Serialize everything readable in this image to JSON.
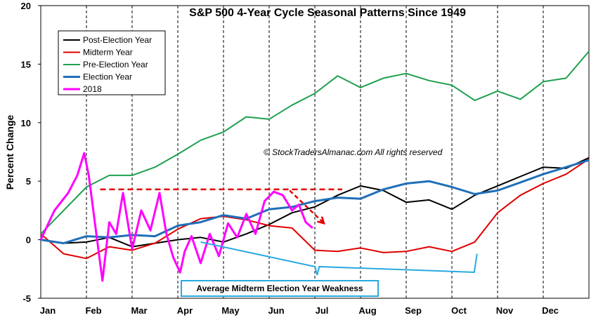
{
  "chart_data": {
    "type": "line",
    "title": "S&P 500 4-Year Cycle Seasonal Patterns Since 1949",
    "ylabel": "Percent Change",
    "xlabel": "",
    "ylim": [
      -5,
      20
    ],
    "yticks": [
      -5,
      0,
      5,
      10,
      15,
      20
    ],
    "xlim": [
      0,
      12
    ],
    "categories": [
      "Jan",
      "Feb",
      "Mar",
      "Apr",
      "May",
      "Jun",
      "Jul",
      "Aug",
      "Sep",
      "Oct",
      "Nov",
      "Dec"
    ],
    "grid": "vertical dashed at month starts",
    "legend_position": "top-left",
    "copyright": "© StockTradersAlmanac.com All rights reserved",
    "annotation": "Average Midterm Election Year Weakness",
    "series": [
      {
        "name": "Post-Election Year",
        "color": "#000000",
        "x": [
          0,
          0.5,
          1,
          1.5,
          2,
          2.5,
          3,
          3.5,
          4,
          4.5,
          5,
          5.5,
          6,
          6.5,
          7,
          7.5,
          8,
          8.5,
          9,
          9.5,
          10,
          10.5,
          11,
          11.5,
          12
        ],
        "y": [
          0,
          -0.3,
          -0.2,
          0.2,
          -0.6,
          -0.3,
          0,
          0.2,
          -0.2,
          0.5,
          1.3,
          2.3,
          2.8,
          3.8,
          4.6,
          4.2,
          3.2,
          3.4,
          2.6,
          3.8,
          4.6,
          5.4,
          6.2,
          6.1,
          7.0
        ]
      },
      {
        "name": "Midterm Year",
        "color": "#e00000",
        "x": [
          0,
          0.5,
          1,
          1.5,
          2,
          2.5,
          3,
          3.5,
          4,
          4.5,
          5,
          5.5,
          6,
          6.5,
          7,
          7.5,
          8,
          8.5,
          9,
          9.5,
          10,
          10.5,
          11,
          11.5,
          12
        ],
        "y": [
          0.5,
          -1.2,
          -1.6,
          -0.6,
          -0.9,
          -0.3,
          0.9,
          1.8,
          2.0,
          1.7,
          1.2,
          1.0,
          -0.9,
          -1.0,
          -0.7,
          -1.1,
          -1.0,
          -0.6,
          -1.0,
          -0.2,
          2.3,
          3.8,
          4.8,
          5.6,
          6.9
        ]
      },
      {
        "name": "Pre-Election Year",
        "color": "#1ea04e",
        "x": [
          0,
          0.5,
          1,
          1.5,
          2,
          2.5,
          3,
          3.5,
          4,
          4.5,
          5,
          5.5,
          6,
          6.5,
          7,
          7.5,
          8,
          8.5,
          9,
          9.5,
          10,
          10.5,
          11,
          11.5,
          12
        ],
        "y": [
          0.5,
          2.5,
          4.5,
          5.5,
          5.5,
          6.2,
          7.3,
          8.5,
          9.2,
          10.5,
          10.3,
          11.5,
          12.5,
          14.0,
          13.0,
          13.8,
          14.2,
          13.6,
          13.2,
          11.9,
          12.7,
          12.0,
          13.5,
          13.8,
          16.1
        ]
      },
      {
        "name": "Election Year",
        "color": "#1f6fb8",
        "x": [
          0,
          0.5,
          1,
          1.5,
          2,
          2.5,
          3,
          3.5,
          4,
          4.5,
          5,
          5.5,
          6,
          6.5,
          7,
          7.5,
          8,
          8.5,
          9,
          9.5,
          10,
          10.5,
          11,
          11.5,
          12
        ],
        "y": [
          0,
          -0.3,
          0.3,
          0.2,
          0.4,
          0.3,
          1.2,
          1.5,
          2.1,
          1.8,
          2.6,
          2.8,
          3.3,
          3.6,
          3.5,
          4.3,
          4.8,
          5.0,
          4.5,
          3.9,
          4.2,
          4.9,
          5.6,
          6.2,
          6.8
        ]
      },
      {
        "name": "2018",
        "color": "#ff00ff",
        "x": [
          0,
          0.3,
          0.6,
          0.8,
          0.95,
          1.05,
          1.2,
          1.35,
          1.5,
          1.65,
          1.8,
          2.0,
          2.2,
          2.4,
          2.6,
          2.75,
          2.9,
          3.05,
          3.15,
          3.3,
          3.5,
          3.7,
          3.9,
          4.1,
          4.3,
          4.5,
          4.7,
          4.9,
          5.1,
          5.3,
          5.5,
          5.65,
          5.8,
          5.95
        ],
        "y": [
          0,
          2.5,
          4.0,
          5.5,
          7.4,
          5.5,
          1.0,
          -3.5,
          1.5,
          0.5,
          4.0,
          -0.8,
          2.5,
          0.8,
          4.0,
          0.5,
          -1.5,
          -2.8,
          -1.0,
          0.3,
          -2.0,
          0.5,
          -1.4,
          1.4,
          0.2,
          2.2,
          0.5,
          3.3,
          4.1,
          3.8,
          2.5,
          3.0,
          1.5,
          1.0
        ]
      }
    ],
    "reference_line": {
      "y": 4.3,
      "x_start": 1.3,
      "x_end": 6.6,
      "color": "#e00000",
      "style": "dashed"
    },
    "arrow": {
      "from": [
        5.45,
        4.2
      ],
      "to": [
        6.2,
        1.4
      ],
      "color": "#e00000",
      "style": "dashed"
    }
  }
}
